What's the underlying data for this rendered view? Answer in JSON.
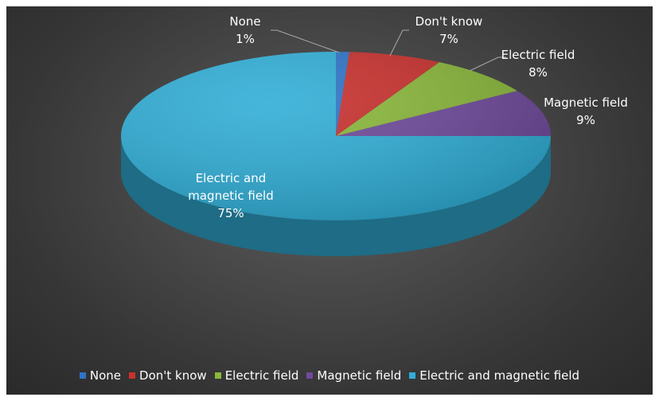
{
  "chart_data": {
    "type": "pie",
    "title": "",
    "categories": [
      "None",
      "Don't know",
      "Electric field",
      "Magnetic field",
      "Electric and magnetic field"
    ],
    "values": [
      1,
      7,
      8,
      9,
      75
    ],
    "labels": [
      {
        "line1": "None",
        "line2": "",
        "pct": "1%"
      },
      {
        "line1": "Don't know",
        "line2": "",
        "pct": "7%"
      },
      {
        "line1": "Electric field",
        "line2": "",
        "pct": "8%"
      },
      {
        "line1": "Magnetic field",
        "line2": "",
        "pct": "9%"
      },
      {
        "line1": "Electric and",
        "line2": "magnetic field",
        "pct": "75%"
      }
    ],
    "colors": [
      "#2e74c8",
      "#c8312e",
      "#8ab83b",
      "#6f4a9c",
      "#31aed6"
    ],
    "legend_position": "bottom",
    "style": "3d"
  }
}
